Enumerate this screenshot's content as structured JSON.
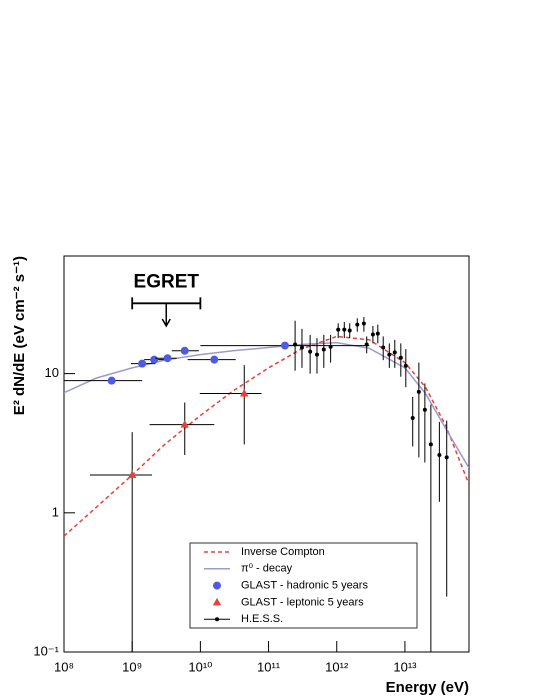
{
  "chart_data": {
    "type": "scatter",
    "x_label": "Energy (eV)",
    "y_label": "E² dN/dE (eV cm⁻² s⁻¹)",
    "log_x": true,
    "log_y": true,
    "xlim": [
      100000000.0,
      87000000000000.0
    ],
    "ylim": [
      0.1,
      70
    ],
    "xticks": [
      {
        "value": 100000000.0,
        "label": "10⁸"
      },
      {
        "value": 1000000000.0,
        "label": "10⁹"
      },
      {
        "value": 10000000000.0,
        "label": "10¹⁰"
      },
      {
        "value": 100000000000.0,
        "label": "10¹¹"
      },
      {
        "value": 1000000000000.0,
        "label": "10¹²"
      },
      {
        "value": 10000000000000.0,
        "label": "10¹³"
      }
    ],
    "yticks": [
      {
        "value": 0.1,
        "label": "10⁻¹"
      },
      1,
      10
    ],
    "legend": "bottom",
    "series": [
      {
        "name": "Inverse Compton",
        "color": "#e8413c",
        "style": "dashed",
        "x": [
          100000000.0,
          300000000.0,
          1000000000.0,
          3000000000.0,
          10000000000.0,
          30000000000.0,
          100000000000.0,
          300000000000.0,
          1000000000000.0,
          3000000000000.0,
          10000000000000.0,
          20000000000000.0,
          40000000000000.0,
          87000000000000.0
        ],
        "values": [
          0.68,
          1.1,
          1.87,
          3.1,
          5.0,
          7.5,
          11,
          15,
          18.5,
          17.5,
          12,
          8,
          4.2,
          1.6
        ]
      },
      {
        "name": "π⁰ - decay",
        "color": "#9c9cc9",
        "style": "solid",
        "x": [
          100000000.0,
          300000000.0,
          1000000000.0,
          3000000000.0,
          10000000000.0,
          30000000000.0,
          100000000000.0,
          300000000000.0,
          1000000000000.0,
          3000000000000.0,
          10000000000000.0,
          20000000000000.0,
          40000000000000.0,
          87000000000000.0
        ],
        "values": [
          7.3,
          9.3,
          11,
          12.5,
          13.7,
          14.6,
          15.4,
          16.2,
          16.7,
          15.2,
          11,
          7.2,
          4,
          2.1
        ]
      },
      {
        "name": "GLAST - hadronic 5 years",
        "color": "#4f5be0",
        "marker": "circle",
        "x": [
          500000000.0,
          1400000000.0,
          2100000000.0,
          3300000000.0,
          5900000000.0,
          16000000000.0,
          174000000000.0
        ],
        "x_low": [
          100000000.0,
          960000000.0,
          1500000000.0,
          2200000000.0,
          3800000000.0,
          6500000000.0,
          10000000000.0
        ],
        "x_high": [
          1400000000.0,
          2200000000.0,
          3000000000.0,
          4500000000.0,
          9500000000.0,
          33000000000.0,
          3000000000000.0
        ],
        "values": [
          8.9,
          11.8,
          12.6,
          12.9,
          14.6,
          12.6,
          15.9
        ]
      },
      {
        "name": "GLAST - leptonic 5 years",
        "color": "#e8413c",
        "marker": "triangle",
        "x": [
          1000000000.0,
          5900000000.0,
          44000000000.0
        ],
        "x_low": [
          240000000.0,
          1800000000.0,
          9800000000.0
        ],
        "x_high": [
          1950000000.0,
          16000000000.0,
          79000000000.0
        ],
        "values": [
          1.87,
          4.3,
          7.2
        ],
        "y_low": [
          0.1,
          2.6,
          3.1
        ],
        "y_high": [
          3.8,
          6.2,
          11.5
        ]
      },
      {
        "name": "H.E.S.S.",
        "color": "#000000",
        "marker": "dot",
        "x": [
          245000000000.0,
          309000000000.0,
          407000000000.0,
          513000000000.0,
          646000000000.0,
          813000000000.0,
          1050000000000.0,
          1290000000000.0,
          1550000000000.0,
          2000000000000.0,
          2500000000000.0,
          2750000000000.0,
          3390000000000.0,
          4000000000000.0,
          4800000000000.0,
          5900000000000.0,
          7100000000000.0,
          8700000000000.0,
          10300000000000.0,
          13000000000000.0,
          16000000000000.0,
          19600000000000.0,
          24000000000000.0,
          32000000000000.0,
          41000000000000.0
        ],
        "values": [
          16.2,
          15.4,
          14.4,
          13.7,
          14.9,
          15.6,
          20.7,
          20.7,
          20.4,
          22.5,
          22.9,
          16.2,
          19.1,
          19.4,
          15.4,
          13.7,
          14.2,
          13.0,
          11.4,
          4.8,
          7.4,
          5.5,
          3.1,
          2.6,
          2.5
        ],
        "y_low": [
          10.5,
          11,
          10,
          10,
          11,
          12,
          18,
          18,
          18,
          20,
          20,
          14,
          16.5,
          16.5,
          12.5,
          11,
          11,
          9.5,
          8,
          3,
          2.5,
          2.3,
          0.1,
          1.2,
          0.25
        ],
        "y_high": [
          24,
          21,
          19,
          18,
          19,
          19,
          23,
          23.5,
          23,
          25,
          25.5,
          18.5,
          22,
          22.5,
          18.5,
          16.5,
          17.5,
          16.5,
          15,
          6.8,
          12,
          8.5,
          6,
          4.5,
          4.6
        ]
      }
    ],
    "annotations": [
      {
        "text": "EGRET",
        "x": 3160000000.0,
        "x_low": 1000000000.0,
        "x_high": 10000000000.0,
        "y": 32,
        "y_end": 22
      }
    ]
  }
}
